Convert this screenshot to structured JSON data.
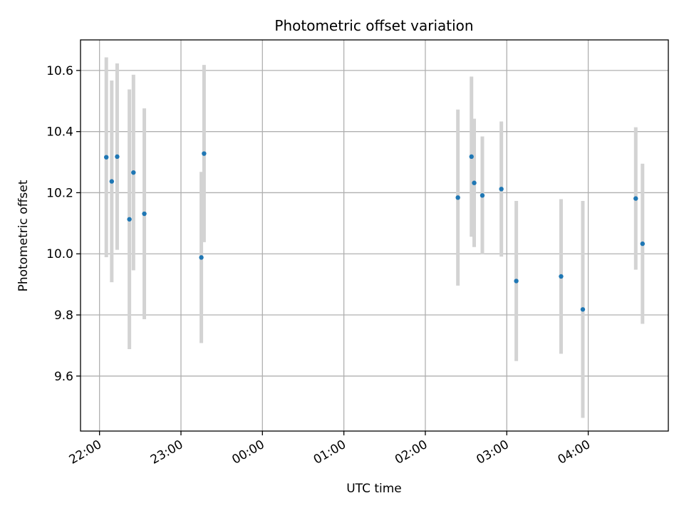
{
  "chart_data": {
    "type": "scatter",
    "title": "Photometric offset variation",
    "xlabel": "UTC time",
    "ylabel": "Photometric offset",
    "x_axis_kind": "time",
    "x_ticks": [
      "22:00",
      "23:00",
      "00:00",
      "01:00",
      "02:00",
      "03:00",
      "04:00"
    ],
    "y_ticks": [
      "9.6",
      "9.8",
      "10.0",
      "10.2",
      "10.4",
      "10.6"
    ],
    "xlim": [
      "21:46",
      "04:59"
    ],
    "ylim": [
      9.42,
      10.7
    ],
    "grid": true,
    "colors": {
      "marker": "#1f77b4",
      "errorbar": "#d3d3d3",
      "grid": "#b0b0b0"
    },
    "points": [
      {
        "x": "22:05",
        "y": 10.316,
        "yerr": 0.327
      },
      {
        "x": "22:09",
        "y": 10.237,
        "yerr": 0.33
      },
      {
        "x": "22:13",
        "y": 10.318,
        "yerr": 0.305
      },
      {
        "x": "22:22",
        "y": 10.113,
        "yerr": 0.425
      },
      {
        "x": "22:25",
        "y": 10.266,
        "yerr": 0.32
      },
      {
        "x": "22:33",
        "y": 10.131,
        "yerr": 0.345
      },
      {
        "x": "23:15",
        "y": 9.988,
        "yerr": 0.28
      },
      {
        "x": "23:17",
        "y": 10.328,
        "yerr": 0.29
      },
      {
        "x": "02:24",
        "y": 10.184,
        "yerr": 0.288
      },
      {
        "x": "02:34",
        "y": 10.318,
        "yerr": 0.262
      },
      {
        "x": "02:36",
        "y": 10.232,
        "yerr": 0.21
      },
      {
        "x": "02:42",
        "y": 10.191,
        "yerr": 0.193
      },
      {
        "x": "02:56",
        "y": 10.212,
        "yerr": 0.221
      },
      {
        "x": "03:07",
        "y": 9.911,
        "yerr": 0.262
      },
      {
        "x": "03:40",
        "y": 9.926,
        "yerr": 0.253
      },
      {
        "x": "03:56",
        "y": 9.818,
        "yerr": 0.355
      },
      {
        "x": "04:35",
        "y": 10.181,
        "yerr": 0.233
      },
      {
        "x": "04:40",
        "y": 10.033,
        "yerr": 0.262
      }
    ]
  }
}
